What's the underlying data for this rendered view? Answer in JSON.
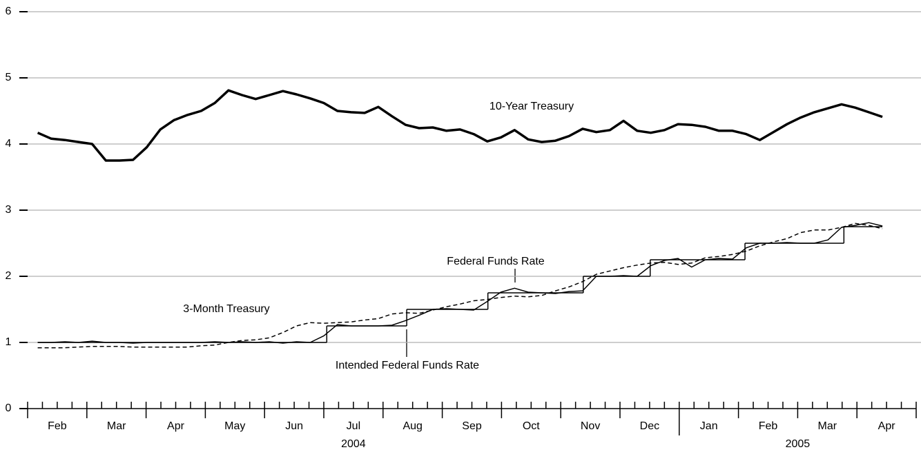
{
  "chart_data": {
    "type": "line",
    "xlim": [
      0,
      15
    ],
    "ylim": [
      0,
      6
    ],
    "yticks": [
      0,
      1,
      2,
      3,
      4,
      5,
      6
    ],
    "grid": true,
    "xticks": [
      {
        "value": 0.5,
        "label": "Feb"
      },
      {
        "value": 1.5,
        "label": "Mar"
      },
      {
        "value": 2.5,
        "label": "Apr"
      },
      {
        "value": 3.5,
        "label": "May"
      },
      {
        "value": 4.5,
        "label": "Jun"
      },
      {
        "value": 5.5,
        "label": "Jul"
      },
      {
        "value": 6.5,
        "label": "Aug"
      },
      {
        "value": 7.5,
        "label": "Sep"
      },
      {
        "value": 8.5,
        "label": "Oct"
      },
      {
        "value": 9.5,
        "label": "Nov"
      },
      {
        "value": 10.5,
        "label": "Dec"
      },
      {
        "value": 11.5,
        "label": "Jan"
      },
      {
        "value": 12.5,
        "label": "Feb"
      },
      {
        "value": 13.5,
        "label": "Mar"
      },
      {
        "value": 14.5,
        "label": "Apr"
      }
    ],
    "xmajor_ticks": [
      0,
      1,
      2,
      3,
      4,
      5,
      6,
      7,
      8,
      9,
      10,
      11,
      12,
      13,
      14,
      15
    ],
    "xminor_ticks": [
      0.25,
      0.5,
      0.75,
      1.25,
      1.5,
      1.75,
      2.25,
      2.5,
      2.75,
      3.25,
      3.5,
      3.75,
      4.25,
      4.5,
      4.75,
      5.25,
      5.5,
      5.75,
      6.25,
      6.5,
      6.75,
      7.25,
      7.5,
      7.75,
      8.25,
      8.5,
      8.75,
      9.25,
      9.5,
      9.75,
      10.25,
      10.5,
      10.75,
      11.25,
      11.5,
      11.75,
      12.25,
      12.5,
      12.75,
      13.25,
      13.5,
      13.75,
      14.25,
      14.5,
      14.75
    ],
    "year_labels": [
      {
        "value": 5.5,
        "label": "2004"
      },
      {
        "value": 13,
        "label": "2005"
      }
    ],
    "year_break": 11,
    "x": [
      0.17,
      0.4,
      0.63,
      0.86,
      1.09,
      1.32,
      1.55,
      1.78,
      2.01,
      2.24,
      2.47,
      2.7,
      2.93,
      3.16,
      3.39,
      3.62,
      3.85,
      4.08,
      4.31,
      4.54,
      4.77,
      5.0,
      5.23,
      5.46,
      5.69,
      5.92,
      6.15,
      6.38,
      6.61,
      6.84,
      7.07,
      7.3,
      7.53,
      7.76,
      7.99,
      8.22,
      8.45,
      8.68,
      8.91,
      9.14,
      9.37,
      9.6,
      9.83,
      10.06,
      10.29,
      10.52,
      10.75,
      10.98,
      11.21,
      11.44,
      11.67,
      11.9,
      12.13,
      12.36,
      12.59,
      12.82,
      13.05,
      13.28,
      13.51,
      13.74,
      13.97,
      14.2,
      14.43
    ],
    "series": [
      {
        "name": "10-Year Treasury",
        "color": "#000000",
        "width": 3.5,
        "dash": false,
        "values": [
          4.17,
          4.08,
          4.06,
          4.03,
          4.0,
          3.75,
          3.75,
          3.76,
          3.95,
          4.22,
          4.36,
          4.44,
          4.5,
          4.62,
          4.81,
          4.74,
          4.68,
          4.74,
          4.8,
          4.75,
          4.69,
          4.62,
          4.5,
          4.48,
          4.47,
          4.56,
          4.42,
          4.29,
          4.24,
          4.25,
          4.2,
          4.22,
          4.15,
          4.04,
          4.1,
          4.21,
          4.07,
          4.03,
          4.05,
          4.12,
          4.23,
          4.18,
          4.21,
          4.35,
          4.2,
          4.17,
          4.21,
          4.3,
          4.29,
          4.26,
          4.2,
          4.2,
          4.15,
          4.06,
          4.18,
          4.3,
          4.4,
          4.48,
          4.54,
          4.6,
          4.55,
          4.48,
          4.41
        ]
      },
      {
        "name": "Federal Funds Rate",
        "color": "#000000",
        "width": 1.5,
        "dash": false,
        "values": [
          1.0,
          1.0,
          1.01,
          1.0,
          1.02,
          1.0,
          1.0,
          0.99,
          1.0,
          1.0,
          1.0,
          1.0,
          1.0,
          1.01,
          1.0,
          1.01,
          1.0,
          1.01,
          0.99,
          1.01,
          1.0,
          1.1,
          1.27,
          1.25,
          1.25,
          1.25,
          1.26,
          1.33,
          1.41,
          1.5,
          1.51,
          1.5,
          1.49,
          1.62,
          1.76,
          1.82,
          1.76,
          1.75,
          1.74,
          1.77,
          1.78,
          2.0,
          2.0,
          2.01,
          2.0,
          2.16,
          2.24,
          2.27,
          2.14,
          2.25,
          2.27,
          2.26,
          2.43,
          2.5,
          2.5,
          2.51,
          2.5,
          2.5,
          2.55,
          2.74,
          2.77,
          2.81,
          2.76
        ]
      },
      {
        "name": "3-Month Treasury",
        "color": "#000000",
        "width": 1.5,
        "dash": true,
        "values": [
          0.92,
          0.92,
          0.92,
          0.93,
          0.94,
          0.94,
          0.94,
          0.93,
          0.93,
          0.93,
          0.93,
          0.93,
          0.95,
          0.96,
          1.0,
          1.03,
          1.04,
          1.07,
          1.15,
          1.25,
          1.3,
          1.29,
          1.3,
          1.31,
          1.34,
          1.36,
          1.43,
          1.45,
          1.44,
          1.49,
          1.54,
          1.58,
          1.63,
          1.65,
          1.68,
          1.7,
          1.69,
          1.71,
          1.78,
          1.84,
          1.92,
          2.03,
          2.08,
          2.13,
          2.17,
          2.2,
          2.21,
          2.18,
          2.2,
          2.28,
          2.3,
          2.33,
          2.38,
          2.46,
          2.52,
          2.57,
          2.66,
          2.7,
          2.7,
          2.74,
          2.8,
          2.77,
          2.72
        ]
      }
    ],
    "step_series": {
      "name": "Intended Federal Funds Rate",
      "color": "#000000",
      "x": [
        0.17,
        5.05,
        6.4,
        7.77,
        9.38,
        10.51,
        12.11,
        13.78,
        14.43
      ],
      "values": [
        1.0,
        1.25,
        1.5,
        1.75,
        2.0,
        2.25,
        2.5,
        2.75,
        2.75
      ]
    }
  }
}
